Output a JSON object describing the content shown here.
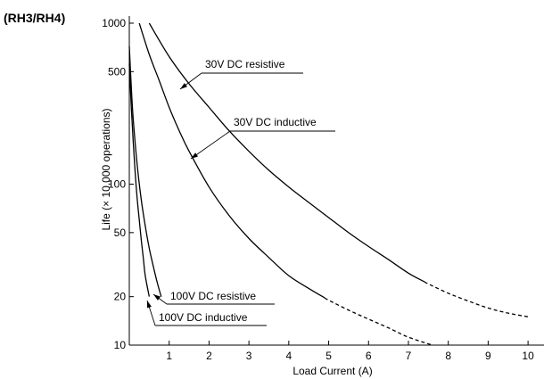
{
  "chart_data": {
    "type": "line",
    "corner_label": "(RH3/RH4)",
    "title": "",
    "xlabel": "Load Current (A)",
    "ylabel": "Life (× 10,000 operations)",
    "x_scale": "linear",
    "y_scale": "log",
    "xlim": [
      0,
      10.4
    ],
    "ylim": [
      10,
      1000
    ],
    "x_ticks": [
      "1",
      "2",
      "3",
      "4",
      "5",
      "6",
      "7",
      "8",
      "9",
      "10"
    ],
    "y_ticks": [
      "10",
      "20",
      "50",
      "100",
      "500",
      "1000"
    ],
    "grid": false,
    "series": [
      {
        "name": "30V DC resistive",
        "points": [
          [
            0.5,
            1000
          ],
          [
            1,
            620
          ],
          [
            1.5,
            420
          ],
          [
            2,
            300
          ],
          [
            2.5,
            215
          ],
          [
            3,
            160
          ],
          [
            3.5,
            122
          ],
          [
            4,
            96
          ],
          [
            4.5,
            77
          ],
          [
            5,
            62
          ],
          [
            5.5,
            50
          ],
          [
            6,
            41
          ],
          [
            6.5,
            34
          ],
          [
            7,
            28
          ],
          [
            7.5,
            24
          ],
          [
            8,
            21
          ],
          [
            8.5,
            18.8
          ],
          [
            9,
            17
          ],
          [
            9.5,
            15.8
          ],
          [
            10,
            15
          ]
        ],
        "dashed_from_x": 7.4
      },
      {
        "name": "30V DC inductive",
        "points": [
          [
            0.25,
            1000
          ],
          [
            0.5,
            640
          ],
          [
            0.75,
            440
          ],
          [
            1,
            300
          ],
          [
            1.25,
            215
          ],
          [
            1.5,
            160
          ],
          [
            2,
            96
          ],
          [
            2.5,
            64
          ],
          [
            3,
            46
          ],
          [
            3.5,
            35
          ],
          [
            4,
            27
          ],
          [
            4.5,
            22.5
          ],
          [
            5,
            19
          ],
          [
            5.5,
            16.5
          ],
          [
            6,
            14.5
          ],
          [
            6.5,
            12.8
          ],
          [
            7,
            11.2
          ],
          [
            7.6,
            10
          ]
        ],
        "dashed_from_x": 4.9
      },
      {
        "name": "100V DC resistive",
        "points": [
          [
            0,
            720
          ],
          [
            0.05,
            400
          ],
          [
            0.1,
            250
          ],
          [
            0.2,
            130
          ],
          [
            0.3,
            80
          ],
          [
            0.4,
            55
          ],
          [
            0.5,
            40
          ],
          [
            0.6,
            31
          ],
          [
            0.7,
            24.5
          ],
          [
            0.8,
            20
          ]
        ]
      },
      {
        "name": "100V DC inductive",
        "points": [
          [
            0,
            560
          ],
          [
            0.05,
            300
          ],
          [
            0.1,
            180
          ],
          [
            0.15,
            115
          ],
          [
            0.2,
            80
          ],
          [
            0.25,
            60
          ],
          [
            0.3,
            45
          ],
          [
            0.35,
            35
          ],
          [
            0.4,
            27
          ],
          [
            0.5,
            20
          ]
        ]
      }
    ],
    "annotations": [
      {
        "text": "30V DC resistive",
        "series": 0
      },
      {
        "text": "30V DC inductive",
        "series": 1
      },
      {
        "text": "100V DC resistive",
        "series": 2
      },
      {
        "text": "100V DC inductive",
        "series": 3
      }
    ]
  }
}
